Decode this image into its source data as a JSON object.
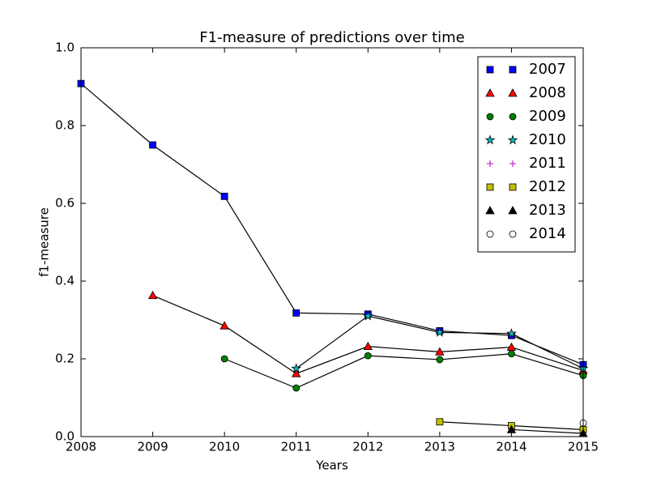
{
  "chart_data": {
    "type": "line",
    "title": "F1-measure of predictions over time",
    "x_label": "Years",
    "y_label": "f1-measure",
    "x": [
      2008,
      2009,
      2010,
      2011,
      2012,
      2013,
      2014,
      2015
    ],
    "xlim": [
      2008,
      2015
    ],
    "xticks": [
      2008,
      2009,
      2010,
      2011,
      2012,
      2013,
      2014,
      2015
    ],
    "ylim": [
      0,
      1
    ],
    "yticks": [
      {
        "value": 0,
        "label": "0.0"
      },
      {
        "value": 0.2,
        "label": "0.2"
      },
      {
        "value": 0.4,
        "label": "0.4"
      },
      {
        "value": 0.6,
        "label": "0.6"
      },
      {
        "value": 0.8,
        "label": "0.8"
      },
      {
        "value": 1,
        "label": "1.0"
      }
    ],
    "legend": "upper right",
    "line_color": "#000000",
    "series": [
      {
        "name": "2007",
        "color": "#0000ff",
        "marker": "square",
        "values": [
          0.908,
          0.75,
          0.618,
          0.318,
          0.315,
          0.272,
          0.26,
          0.185
        ]
      },
      {
        "name": "2008",
        "color": "#ff0000",
        "marker": "triangle",
        "values": [
          null,
          0.363,
          0.285,
          0.162,
          0.232,
          0.218,
          0.23,
          0.17
        ]
      },
      {
        "name": "2009",
        "color": "#008000",
        "marker": "circle",
        "values": [
          null,
          null,
          0.2,
          0.125,
          0.208,
          0.198,
          0.213,
          0.157
        ]
      },
      {
        "name": "2010",
        "color": "#00bfbf",
        "marker": "star",
        "values": [
          null,
          null,
          null,
          0.175,
          0.31,
          0.268,
          0.265,
          0.175
        ]
      },
      {
        "name": "2011",
        "color": "#bf00bf",
        "marker": "plus",
        "values": [
          null,
          null,
          null,
          null,
          null,
          null,
          null,
          null
        ]
      },
      {
        "name": "2012",
        "color": "#bfbf00",
        "marker": "square",
        "values": [
          null,
          null,
          null,
          null,
          null,
          0.038,
          0.028,
          0.018
        ]
      },
      {
        "name": "2013",
        "color": "#000000",
        "marker": "triangle",
        "values": [
          null,
          null,
          null,
          null,
          null,
          null,
          0.018,
          0.008
        ]
      },
      {
        "name": "2014",
        "color": "#ffffff",
        "marker": "circle",
        "values": [
          null,
          null,
          null,
          null,
          null,
          null,
          null,
          0.035
        ]
      }
    ]
  }
}
